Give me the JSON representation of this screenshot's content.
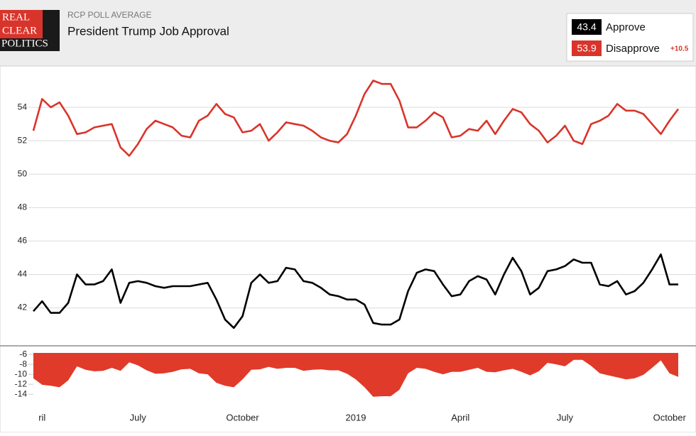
{
  "header": {
    "logo": [
      "REAL",
      "CLEAR",
      "POLITICS"
    ],
    "kicker": "RCP POLL AVERAGE",
    "title": "President Trump Job Approval"
  },
  "chart_data": [
    {
      "type": "line",
      "ylim": [
        39.9,
        56.3
      ],
      "yticks": [
        42,
        44,
        46,
        48,
        50,
        52,
        54
      ],
      "grid": true,
      "spread_label": "+10.5",
      "series": [
        {
          "name": "Approve",
          "color": "#000000",
          "legend_value": 43.4,
          "values": [
            41.8,
            42.4,
            41.7,
            41.7,
            42.3,
            44.0,
            43.4,
            43.4,
            43.6,
            44.3,
            42.3,
            43.5,
            43.6,
            43.5,
            43.3,
            43.2,
            43.3,
            43.3,
            43.3,
            43.4,
            43.5,
            42.5,
            41.3,
            40.8,
            41.5,
            43.5,
            44.0,
            43.5,
            43.6,
            44.4,
            44.3,
            43.6,
            43.5,
            43.2,
            42.8,
            42.7,
            42.5,
            42.5,
            42.2,
            41.1,
            41.0,
            41.0,
            41.3,
            43.0,
            44.1,
            44.3,
            44.2,
            43.4,
            42.7,
            42.8,
            43.6,
            43.9,
            43.7,
            42.8,
            44.0,
            45.0,
            44.2,
            42.8,
            43.2,
            44.2,
            44.3,
            44.5,
            44.9,
            44.7,
            44.7,
            43.4,
            43.3,
            43.6,
            42.8,
            43.0,
            43.5,
            44.3,
            45.2,
            43.4,
            43.4
          ]
        },
        {
          "name": "Disapprove",
          "color": "#d9342b",
          "legend_value": 53.9,
          "values": [
            52.6,
            54.5,
            54.0,
            54.3,
            53.5,
            52.4,
            52.5,
            52.8,
            52.9,
            53.0,
            51.6,
            51.1,
            51.8,
            52.7,
            53.2,
            53.0,
            52.8,
            52.3,
            52.2,
            53.2,
            53.5,
            54.2,
            53.6,
            53.4,
            52.5,
            52.6,
            53.0,
            52.0,
            52.5,
            53.1,
            53.0,
            52.9,
            52.6,
            52.2,
            52.0,
            51.9,
            52.4,
            53.5,
            54.8,
            55.6,
            55.4,
            55.4,
            54.4,
            52.8,
            52.8,
            53.2,
            53.7,
            53.4,
            52.2,
            52.3,
            52.7,
            52.6,
            53.2,
            52.4,
            53.2,
            53.9,
            53.7,
            53.0,
            52.6,
            51.9,
            52.3,
            52.9,
            52.0,
            51.8,
            53.0,
            53.2,
            53.5,
            54.2,
            53.8,
            53.8,
            53.6,
            53.0,
            52.4,
            53.2,
            53.9
          ]
        }
      ]
    },
    {
      "type": "area",
      "color": "#e03a2a",
      "ylim": [
        -15.4,
        -4.7
      ],
      "yticks": [
        -6,
        -8,
        -10,
        -12,
        -14
      ],
      "categories": [
        null,
        "ril",
        null,
        null,
        null,
        null,
        null,
        null,
        null,
        null,
        null,
        null,
        "July",
        null,
        null,
        null,
        null,
        null,
        null,
        null,
        null,
        null,
        null,
        null,
        "October",
        null,
        null,
        null,
        null,
        null,
        null,
        null,
        null,
        null,
        null,
        null,
        null,
        "2019",
        null,
        null,
        null,
        null,
        null,
        null,
        null,
        null,
        null,
        null,
        null,
        "April",
        null,
        null,
        null,
        null,
        null,
        null,
        null,
        null,
        null,
        null,
        null,
        "July",
        null,
        null,
        null,
        null,
        null,
        null,
        null,
        null,
        null,
        null,
        null,
        "October",
        null
      ],
      "values": [
        -10.8,
        -12.1,
        -12.3,
        -12.6,
        -11.2,
        -8.4,
        -9.1,
        -9.4,
        -9.3,
        -8.7,
        -9.3,
        -7.6,
        -8.2,
        -9.2,
        -9.9,
        -9.8,
        -9.5,
        -9.0,
        -8.9,
        -9.8,
        -10.0,
        -11.7,
        -12.3,
        -12.6,
        -11.0,
        -9.1,
        -9.0,
        -8.5,
        -8.9,
        -8.7,
        -8.7,
        -9.3,
        -9.1,
        -9.0,
        -9.2,
        -9.2,
        -9.9,
        -11.0,
        -12.6,
        -14.5,
        -14.4,
        -14.4,
        -13.1,
        -9.8,
        -8.7,
        -8.9,
        -9.5,
        -10.0,
        -9.5,
        -9.5,
        -9.1,
        -8.7,
        -9.5,
        -9.6,
        -9.2,
        -8.9,
        -9.5,
        -10.2,
        -9.4,
        -7.7,
        -8.0,
        -8.4,
        -7.1,
        -7.1,
        -8.3,
        -9.8,
        -10.2,
        -10.6,
        -11.0,
        -10.8,
        -10.1,
        -8.7,
        -7.2,
        -9.8,
        -10.5
      ]
    }
  ]
}
